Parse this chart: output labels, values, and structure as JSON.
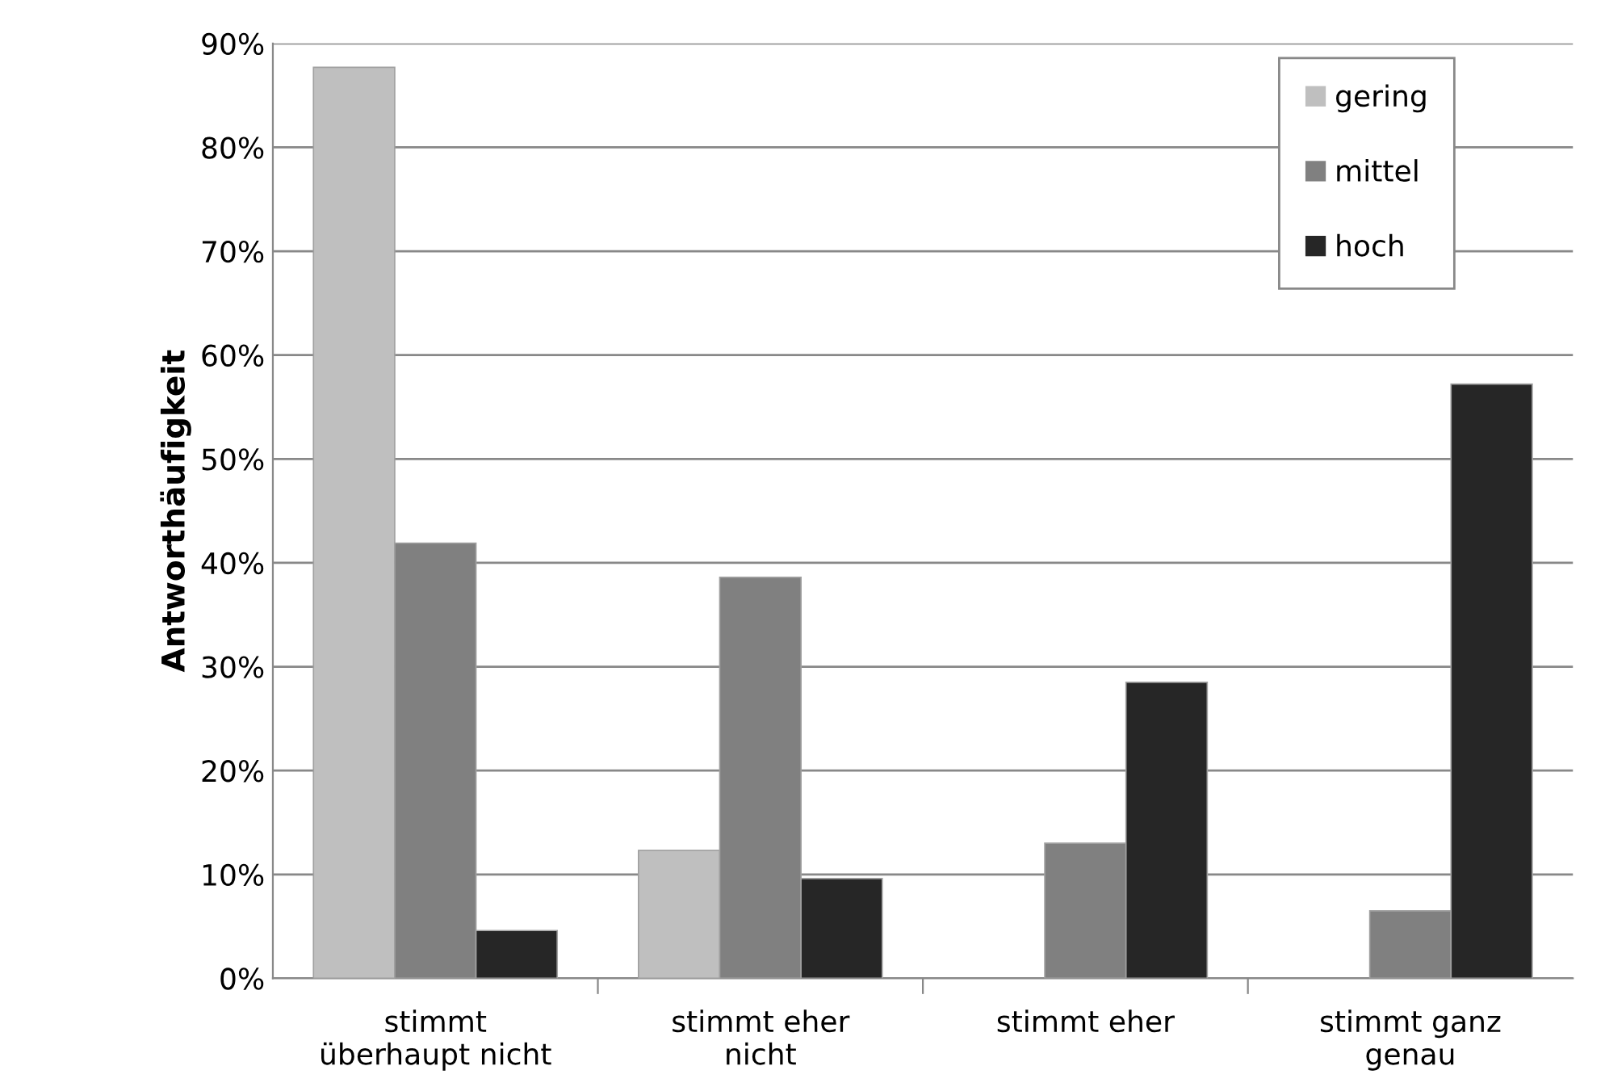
{
  "chart_data": {
    "type": "bar",
    "ylabel": "Antworthäufigkeit",
    "categories": [
      "stimmt\nüberhaupt nicht",
      "stimmt eher\nnicht",
      "stimmt eher",
      "stimmt ganz\ngenau"
    ],
    "series": [
      {
        "name": "gering",
        "color": "#bfbfbf",
        "values": [
          87.7,
          12.3,
          null,
          null
        ]
      },
      {
        "name": "mittel",
        "color": "#808080",
        "values": [
          41.9,
          38.6,
          13.0,
          6.5
        ]
      },
      {
        "name": "hoch",
        "color": "#262626",
        "values": [
          4.6,
          9.6,
          28.5,
          57.2
        ]
      }
    ],
    "ylim": [
      0,
      90
    ],
    "yticks": [
      {
        "value": 0,
        "label": "0%"
      },
      {
        "value": 10,
        "label": "10%"
      },
      {
        "value": 20,
        "label": "20%"
      },
      {
        "value": 30,
        "label": "30%"
      },
      {
        "value": 40,
        "label": "40%"
      },
      {
        "value": 50,
        "label": "50%"
      },
      {
        "value": 60,
        "label": "60%"
      },
      {
        "value": 70,
        "label": "70%"
      },
      {
        "value": 80,
        "label": "80%"
      },
      {
        "value": 90,
        "label": "90%"
      }
    ],
    "grid": "y",
    "legend": "top right"
  }
}
